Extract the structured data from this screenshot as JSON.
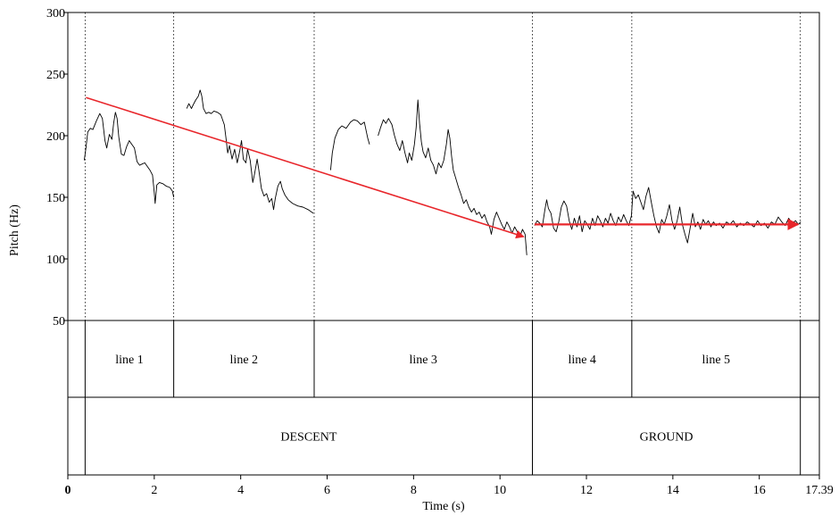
{
  "chart_data": {
    "type": "line",
    "title": "",
    "xlabel": "Time (s)",
    "ylabel": "Pitch (Hz)",
    "xlim": [
      0,
      17.39
    ],
    "ylim": [
      50,
      300
    ],
    "x_ticks": [
      0,
      2,
      4,
      6,
      8,
      10,
      12,
      14,
      16,
      17.39
    ],
    "x_tick_labels": [
      "0",
      "2",
      "4",
      "6",
      "8",
      "10",
      "12",
      "14",
      "16",
      "17.39"
    ],
    "y_ticks": [
      50,
      100,
      150,
      200,
      250,
      300
    ],
    "y_tick_labels": [
      "50",
      "100",
      "150",
      "200",
      "250",
      "300"
    ],
    "grid": false,
    "interval_boundaries": [
      0.4,
      2.45,
      5.7,
      10.75,
      13.05,
      16.95
    ],
    "series": [
      {
        "values": [
          [
            0.38,
            180
          ],
          [
            0.42,
            190
          ],
          [
            0.46,
            203
          ],
          [
            0.52,
            206
          ],
          [
            0.58,
            205
          ],
          [
            0.66,
            212
          ],
          [
            0.74,
            218
          ],
          [
            0.8,
            214
          ],
          [
            0.86,
            196
          ],
          [
            0.9,
            190
          ],
          [
            0.96,
            201
          ],
          [
            1.02,
            197
          ],
          [
            1.06,
            210
          ],
          [
            1.1,
            219
          ],
          [
            1.14,
            214
          ],
          [
            1.18,
            199
          ],
          [
            1.24,
            185
          ],
          [
            1.3,
            184
          ],
          [
            1.36,
            191
          ],
          [
            1.42,
            196
          ],
          [
            1.48,
            193
          ],
          [
            1.54,
            190
          ],
          [
            1.6,
            179
          ],
          [
            1.66,
            176
          ],
          [
            1.72,
            177
          ],
          [
            1.78,
            178
          ],
          [
            1.84,
            175
          ],
          [
            1.9,
            172
          ],
          [
            1.96,
            168
          ],
          [
            2.0,
            154
          ],
          [
            2.02,
            145
          ],
          [
            2.06,
            160
          ],
          [
            2.12,
            162
          ],
          [
            2.2,
            161
          ],
          [
            2.28,
            159
          ],
          [
            2.36,
            158
          ],
          [
            2.42,
            155
          ],
          [
            2.45,
            150
          ]
        ]
      },
      {
        "values": [
          [
            2.75,
            222
          ],
          [
            2.8,
            226
          ],
          [
            2.86,
            222
          ],
          [
            2.9,
            225
          ],
          [
            2.96,
            229
          ],
          [
            3.02,
            232
          ],
          [
            3.06,
            237
          ],
          [
            3.1,
            232
          ],
          [
            3.14,
            222
          ],
          [
            3.2,
            218
          ],
          [
            3.26,
            219
          ],
          [
            3.32,
            218
          ],
          [
            3.38,
            220
          ],
          [
            3.46,
            219
          ],
          [
            3.54,
            217
          ],
          [
            3.62,
            209
          ],
          [
            3.66,
            198
          ],
          [
            3.7,
            186
          ],
          [
            3.74,
            192
          ],
          [
            3.8,
            181
          ],
          [
            3.86,
            189
          ],
          [
            3.92,
            178
          ],
          [
            3.98,
            188
          ],
          [
            4.02,
            196
          ],
          [
            4.06,
            181
          ],
          [
            4.12,
            178
          ],
          [
            4.16,
            189
          ],
          [
            4.22,
            180
          ],
          [
            4.28,
            162
          ],
          [
            4.32,
            169
          ],
          [
            4.38,
            181
          ],
          [
            4.42,
            172
          ],
          [
            4.48,
            157
          ],
          [
            4.54,
            151
          ],
          [
            4.6,
            153
          ],
          [
            4.66,
            146
          ],
          [
            4.72,
            149
          ],
          [
            4.76,
            140
          ],
          [
            4.8,
            149
          ],
          [
            4.86,
            159
          ],
          [
            4.92,
            163
          ],
          [
            4.96,
            157
          ],
          [
            5.02,
            152
          ],
          [
            5.1,
            148
          ],
          [
            5.2,
            145
          ],
          [
            5.32,
            143
          ],
          [
            5.44,
            142
          ],
          [
            5.56,
            140
          ],
          [
            5.68,
            137
          ]
        ]
      },
      {
        "values": [
          [
            6.08,
            172
          ],
          [
            6.12,
            186
          ],
          [
            6.18,
            198
          ],
          [
            6.26,
            205
          ],
          [
            6.34,
            208
          ],
          [
            6.44,
            206
          ],
          [
            6.54,
            211
          ],
          [
            6.62,
            213
          ],
          [
            6.7,
            212
          ],
          [
            6.78,
            209
          ],
          [
            6.86,
            211
          ],
          [
            6.94,
            198
          ],
          [
            6.98,
            193
          ]
        ]
      },
      {
        "values": [
          [
            7.18,
            200
          ],
          [
            7.24,
            207
          ],
          [
            7.3,
            213
          ],
          [
            7.36,
            210
          ],
          [
            7.42,
            214
          ],
          [
            7.5,
            209
          ],
          [
            7.56,
            200
          ],
          [
            7.62,
            193
          ],
          [
            7.68,
            188
          ],
          [
            7.74,
            196
          ],
          [
            7.8,
            186
          ],
          [
            7.86,
            178
          ],
          [
            7.9,
            186
          ],
          [
            7.96,
            180
          ],
          [
            8.02,
            193
          ],
          [
            8.06,
            207
          ],
          [
            8.1,
            229
          ],
          [
            8.14,
            210
          ],
          [
            8.18,
            195
          ],
          [
            8.22,
            187
          ],
          [
            8.28,
            182
          ],
          [
            8.34,
            190
          ],
          [
            8.4,
            180
          ],
          [
            8.46,
            176
          ],
          [
            8.52,
            169
          ],
          [
            8.58,
            178
          ],
          [
            8.64,
            174
          ],
          [
            8.7,
            180
          ],
          [
            8.76,
            193
          ],
          [
            8.8,
            205
          ],
          [
            8.84,
            198
          ],
          [
            8.88,
            183
          ],
          [
            8.92,
            172
          ],
          [
            8.98,
            165
          ],
          [
            9.04,
            158
          ],
          [
            9.1,
            152
          ],
          [
            9.16,
            145
          ],
          [
            9.22,
            148
          ],
          [
            9.28,
            142
          ],
          [
            9.34,
            138
          ],
          [
            9.4,
            141
          ],
          [
            9.46,
            136
          ],
          [
            9.52,
            138
          ],
          [
            9.58,
            133
          ],
          [
            9.64,
            136
          ],
          [
            9.7,
            130
          ],
          [
            9.76,
            126
          ],
          [
            9.8,
            120
          ],
          [
            9.86,
            132
          ],
          [
            9.92,
            138
          ],
          [
            9.98,
            133
          ],
          [
            10.04,
            128
          ],
          [
            10.1,
            124
          ],
          [
            10.16,
            130
          ],
          [
            10.22,
            126
          ],
          [
            10.28,
            121
          ],
          [
            10.34,
            126
          ],
          [
            10.4,
            122
          ],
          [
            10.46,
            118
          ],
          [
            10.52,
            124
          ],
          [
            10.58,
            120
          ],
          [
            10.62,
            103
          ]
        ]
      },
      {
        "values": [
          [
            10.8,
            127
          ],
          [
            10.86,
            131
          ],
          [
            10.92,
            129
          ],
          [
            10.98,
            126
          ],
          [
            11.04,
            140
          ],
          [
            11.08,
            148
          ],
          [
            11.12,
            141
          ],
          [
            11.18,
            137
          ],
          [
            11.24,
            125
          ],
          [
            11.3,
            122
          ],
          [
            11.36,
            130
          ],
          [
            11.42,
            142
          ],
          [
            11.48,
            147
          ],
          [
            11.54,
            143
          ],
          [
            11.6,
            131
          ],
          [
            11.66,
            124
          ],
          [
            11.72,
            133
          ],
          [
            11.78,
            126
          ],
          [
            11.84,
            135
          ],
          [
            11.9,
            122
          ],
          [
            11.96,
            131
          ],
          [
            12.02,
            128
          ],
          [
            12.08,
            124
          ],
          [
            12.14,
            133
          ],
          [
            12.2,
            127
          ],
          [
            12.26,
            135
          ],
          [
            12.32,
            131
          ],
          [
            12.38,
            126
          ],
          [
            12.44,
            133
          ],
          [
            12.5,
            129
          ],
          [
            12.56,
            137
          ],
          [
            12.62,
            131
          ],
          [
            12.68,
            127
          ],
          [
            12.74,
            134
          ],
          [
            12.8,
            130
          ],
          [
            12.86,
            136
          ],
          [
            12.92,
            131
          ],
          [
            12.98,
            127
          ],
          [
            13.04,
            135
          ],
          [
            13.08,
            155
          ],
          [
            13.14,
            149
          ],
          [
            13.2,
            152
          ],
          [
            13.26,
            146
          ],
          [
            13.32,
            140
          ],
          [
            13.38,
            151
          ],
          [
            13.44,
            158
          ],
          [
            13.5,
            146
          ],
          [
            13.56,
            135
          ],
          [
            13.62,
            126
          ],
          [
            13.68,
            121
          ],
          [
            13.74,
            132
          ],
          [
            13.8,
            128
          ],
          [
            13.86,
            135
          ],
          [
            13.92,
            144
          ],
          [
            13.98,
            131
          ],
          [
            14.04,
            124
          ],
          [
            14.1,
            131
          ],
          [
            14.16,
            142
          ],
          [
            14.22,
            128
          ],
          [
            14.28,
            120
          ],
          [
            14.34,
            113
          ],
          [
            14.4,
            125
          ],
          [
            14.46,
            137
          ],
          [
            14.52,
            126
          ],
          [
            14.58,
            130
          ],
          [
            14.64,
            124
          ],
          [
            14.7,
            132
          ],
          [
            14.76,
            128
          ],
          [
            14.82,
            131
          ],
          [
            14.88,
            126
          ],
          [
            14.94,
            130
          ],
          [
            15.0,
            127
          ],
          [
            15.08,
            129
          ],
          [
            15.16,
            125
          ],
          [
            15.24,
            130
          ],
          [
            15.32,
            128
          ],
          [
            15.4,
            131
          ],
          [
            15.48,
            126
          ],
          [
            15.56,
            129
          ],
          [
            15.64,
            127
          ],
          [
            15.72,
            130
          ],
          [
            15.8,
            128
          ],
          [
            15.88,
            126
          ],
          [
            15.96,
            131
          ],
          [
            16.04,
            127
          ],
          [
            16.12,
            129
          ],
          [
            16.2,
            125
          ],
          [
            16.28,
            130
          ],
          [
            16.36,
            128
          ],
          [
            16.44,
            134
          ],
          [
            16.52,
            130
          ],
          [
            16.6,
            127
          ],
          [
            16.68,
            133
          ],
          [
            16.76,
            129
          ],
          [
            16.84,
            131
          ],
          [
            16.9,
            128
          ],
          [
            16.96,
            130
          ]
        ]
      }
    ],
    "annotations": [
      {
        "type": "arrow",
        "color": "#e8262b",
        "from": [
          0.42,
          231
        ],
        "to": [
          10.55,
          118
        ]
      },
      {
        "type": "arrow",
        "color": "#e8262b",
        "from": [
          10.8,
          128
        ],
        "to": [
          16.9,
          128
        ]
      }
    ],
    "tiers": [
      {
        "intervals": [
          {
            "start": 0.4,
            "end": 2.45,
            "label": "line 1"
          },
          {
            "start": 2.45,
            "end": 5.7,
            "label": "line 2"
          },
          {
            "start": 5.7,
            "end": 10.75,
            "label": "line 3"
          },
          {
            "start": 10.75,
            "end": 13.05,
            "label": "line 4"
          },
          {
            "start": 13.05,
            "end": 16.95,
            "label": "line 5"
          }
        ]
      },
      {
        "intervals": [
          {
            "start": 0.4,
            "end": 10.75,
            "label": "DESCENT"
          },
          {
            "start": 10.75,
            "end": 16.95,
            "label": "GROUND"
          }
        ]
      }
    ]
  }
}
